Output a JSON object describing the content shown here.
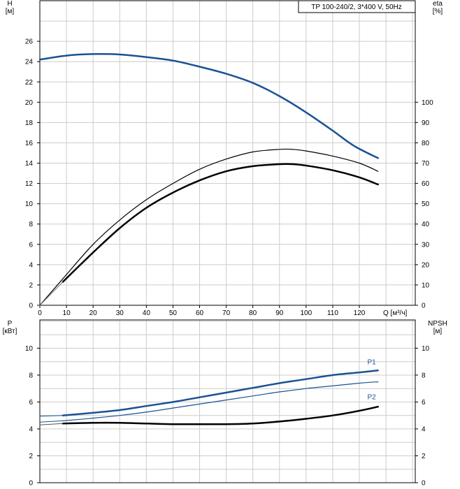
{
  "chart_data": [
    {
      "type": "line",
      "title_box": "TP 100-240/2, 3*400 V, 50Hz",
      "xlabel": "Q [м³/ч]",
      "x_ticks": [
        "0",
        "10",
        "20",
        "30",
        "40",
        "50",
        "60",
        "70",
        "80",
        "90",
        "100",
        "110",
        "120"
      ],
      "xlim": [
        0,
        141
      ],
      "left_axis": {
        "label_line1": "H",
        "label_line2": "[м]",
        "ylim": [
          0,
          30
        ],
        "ticks": [
          "0",
          "2",
          "4",
          "6",
          "8",
          "10",
          "12",
          "14",
          "16",
          "18",
          "20",
          "22",
          "24",
          "26"
        ]
      },
      "right_axis": {
        "label_line1": "eta",
        "label_line2": "[%]",
        "ylim": [
          0,
          150
        ],
        "ticks": [
          "0",
          "10",
          "20",
          "30",
          "40",
          "50",
          "60",
          "70",
          "80",
          "90",
          "100"
        ]
      },
      "series": [
        {
          "name": "",
          "axis": "left",
          "color": "#1a5294",
          "width": 2.5,
          "x": [
            0,
            8.6,
            15,
            22,
            30,
            40,
            50,
            60,
            70,
            80,
            90,
            100,
            110,
            118,
            127
          ],
          "y": [
            24.2,
            24.55,
            24.7,
            24.75,
            24.7,
            24.45,
            24.1,
            23.5,
            22.8,
            21.9,
            20.6,
            19.0,
            17.2,
            15.7,
            14.5
          ]
        },
        {
          "name": "",
          "axis": "right",
          "color": "#000000",
          "width": 1.2,
          "x": [
            0,
            8.6,
            20,
            30,
            40,
            50,
            60,
            70,
            80,
            90,
            95,
            100,
            110,
            120,
            127
          ],
          "y": [
            0,
            13,
            30,
            42,
            52,
            60,
            67,
            72,
            75.5,
            76.8,
            76.8,
            76,
            73.5,
            70,
            66
          ]
        },
        {
          "name": "",
          "axis": "right",
          "color": "#000000",
          "width": 2.5,
          "x": [
            8.6,
            20,
            30,
            40,
            50,
            60,
            70,
            80,
            90,
            95,
            100,
            110,
            120,
            127
          ],
          "y": [
            11.5,
            26,
            38,
            48,
            55.5,
            61.5,
            66,
            68.5,
            69.5,
            69.5,
            68.8,
            66.5,
            63,
            59.5
          ]
        },
        {
          "name": "",
          "axis": "left",
          "color": "#777777",
          "width": 1,
          "x": [
            0,
            8.6
          ],
          "y": [
            0,
            2.3
          ]
        }
      ]
    },
    {
      "type": "line",
      "x_ticks": [],
      "xlim": [
        0,
        141
      ],
      "left_axis": {
        "label_line1": "P",
        "label_line2": "[кВт]",
        "ylim": [
          0,
          12.1
        ],
        "ticks": [
          "0",
          "2",
          "4",
          "6",
          "8",
          "10"
        ]
      },
      "right_axis": {
        "label_line1": "NPSH",
        "label_line2": "[м]",
        "ylim": [
          0,
          12.1
        ],
        "ticks": [
          "0",
          "2",
          "4",
          "6",
          "8",
          "10"
        ]
      },
      "series": [
        {
          "name": "P1",
          "axis": "left",
          "color": "#1a5294",
          "width": 2.5,
          "x": [
            8.6,
            20,
            30,
            40,
            50,
            60,
            70,
            80,
            90,
            100,
            110,
            120,
            127
          ],
          "y": [
            5.0,
            5.2,
            5.4,
            5.7,
            6.0,
            6.35,
            6.7,
            7.05,
            7.4,
            7.7,
            8.0,
            8.2,
            8.35
          ]
        },
        {
          "name": "P2",
          "axis": "left",
          "color": "#1a5294",
          "width": 1.2,
          "x": [
            8.6,
            20,
            30,
            40,
            50,
            60,
            70,
            80,
            90,
            100,
            110,
            120,
            127
          ],
          "y": [
            4.6,
            4.8,
            5.0,
            5.25,
            5.55,
            5.85,
            6.15,
            6.45,
            6.75,
            7.0,
            7.2,
            7.4,
            7.5
          ]
        },
        {
          "name": "",
          "axis": "right",
          "color": "#000000",
          "width": 2.5,
          "x": [
            8.6,
            20,
            30,
            40,
            50,
            60,
            70,
            80,
            90,
            100,
            110,
            120,
            127
          ],
          "y": [
            4.4,
            4.45,
            4.45,
            4.4,
            4.35,
            4.35,
            4.35,
            4.4,
            4.55,
            4.75,
            5.0,
            5.35,
            5.65
          ]
        },
        {
          "name": "",
          "axis": "left",
          "color": "#1a5294",
          "width": 1,
          "x": [
            0,
            8.6
          ],
          "y": [
            4.95,
            5.0
          ]
        },
        {
          "name": "",
          "axis": "left",
          "color": "#1a5294",
          "width": 1,
          "x": [
            0,
            8.6
          ],
          "y": [
            4.5,
            4.6
          ]
        },
        {
          "name": "",
          "axis": "right",
          "color": "#555555",
          "width": 1,
          "x": [
            0,
            8.6
          ],
          "y": [
            4.3,
            4.4
          ]
        }
      ],
      "series_labels": [
        {
          "text": "P1",
          "x": 123,
          "y": 8.8
        },
        {
          "text": "P2",
          "x": 123,
          "y": 6.2
        }
      ]
    }
  ]
}
